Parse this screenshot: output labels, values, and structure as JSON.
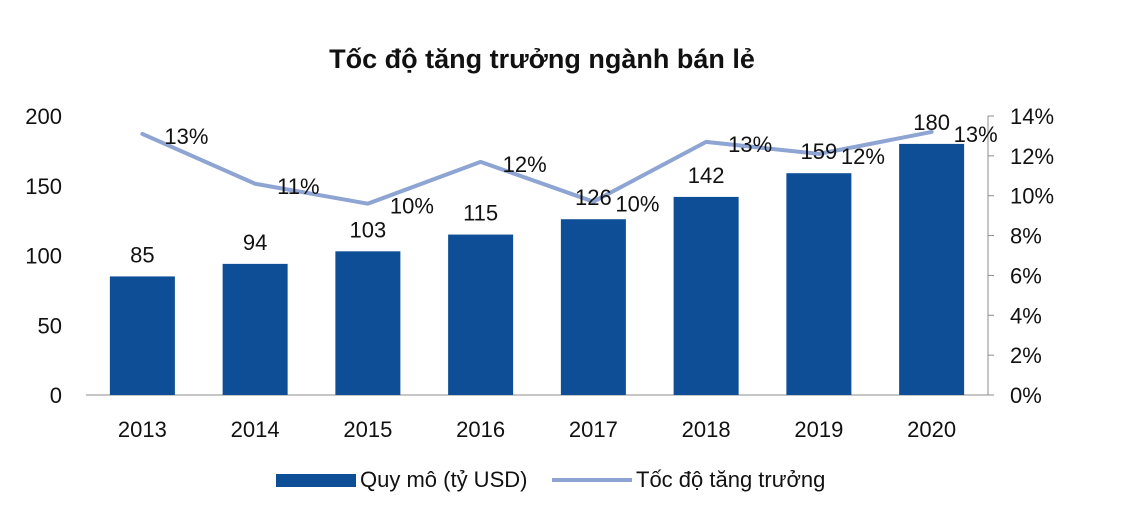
{
  "chart_data": {
    "type": "bar",
    "title": "Tốc độ tăng trưởng ngành bán lẻ",
    "categories": [
      "2013",
      "2014",
      "2015",
      "2016",
      "2017",
      "2018",
      "2019",
      "2020"
    ],
    "series": [
      {
        "name": "Quy mô (tỷ USD)",
        "type": "bar",
        "axis": "left",
        "color": "#0D4E96",
        "values": [
          85,
          94,
          103,
          115,
          126,
          142,
          159,
          180
        ],
        "labels": [
          "85",
          "94",
          "103",
          "115",
          "126",
          "142",
          "159",
          "180"
        ]
      },
      {
        "name": "Tốc độ tăng trưởng",
        "type": "line",
        "axis": "right",
        "color": "#8EA4D2",
        "values": [
          13.1,
          10.6,
          9.6,
          11.7,
          9.7,
          12.7,
          12.1,
          13.2
        ],
        "labels": [
          "13%",
          "11%",
          "10%",
          "12%",
          "10%",
          "13%",
          "12%",
          "13%"
        ]
      }
    ],
    "y_left": {
      "lim": [
        0,
        200
      ],
      "ticks": [
        0,
        50,
        100,
        150,
        200
      ],
      "tick_labels": [
        "0",
        "50",
        "100",
        "150",
        "200"
      ]
    },
    "y_right": {
      "lim": [
        0,
        14
      ],
      "ticks": [
        0,
        2,
        4,
        6,
        8,
        10,
        12,
        14
      ],
      "tick_labels": [
        "0%",
        "2%",
        "4%",
        "6%",
        "8%",
        "10%",
        "12%",
        "14%"
      ]
    },
    "grid": false,
    "legend_position": "bottom",
    "xlabel": "",
    "ylabel": ""
  }
}
